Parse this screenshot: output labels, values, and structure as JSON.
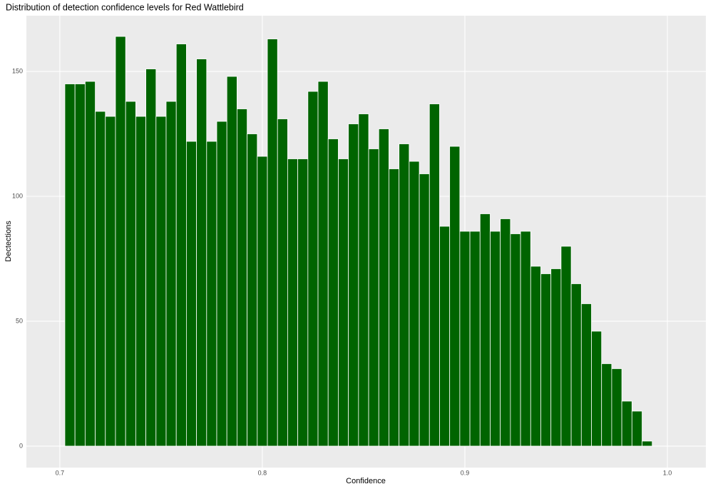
{
  "chart_data": {
    "type": "histogram",
    "title": "Distribution of detection confidence levels for Red Wattlebird",
    "x_label": "Confidence",
    "y_label": "Dectections",
    "color": "#006400",
    "bins": [
      0.7025,
      0.7075,
      0.7125,
      0.7175,
      0.7225,
      0.7275,
      0.7325,
      0.7375,
      0.7425,
      0.7475,
      0.7525,
      0.7575,
      0.7625,
      0.7675,
      0.7725,
      0.7775,
      0.7825,
      0.7875,
      0.7925,
      0.7975,
      0.8025,
      0.8075,
      0.8125,
      0.8175,
      0.8225,
      0.8275,
      0.8325,
      0.8375,
      0.8425,
      0.8475,
      0.8525,
      0.8575,
      0.8625,
      0.8675,
      0.8725,
      0.8775,
      0.8825,
      0.8875,
      0.8925,
      0.8975,
      0.9025,
      0.9075,
      0.9125,
      0.9175,
      0.9225,
      0.9275,
      0.9325,
      0.9375,
      0.9425,
      0.9475,
      0.9525,
      0.9575,
      0.9625,
      0.9675,
      0.9725,
      0.9775,
      0.9825,
      0.9875,
      0.9925
    ],
    "values": [
      145,
      145,
      146,
      134,
      132,
      164,
      138,
      132,
      151,
      132,
      138,
      161,
      122,
      155,
      122,
      130,
      148,
      135,
      125,
      116,
      163,
      131,
      115,
      115,
      142,
      146,
      123,
      115,
      129,
      133,
      119,
      127,
      111,
      121,
      114,
      109,
      137,
      88,
      120,
      86,
      86,
      93,
      86,
      91,
      85,
      86,
      72,
      69,
      71,
      80,
      65,
      57,
      46,
      33,
      31,
      18,
      14,
      2
    ],
    "xlim": [
      0.6835,
      1.019
    ],
    "ylim": [
      -8.6,
      172.3
    ],
    "xticks": [
      0.7,
      0.8,
      0.9,
      {
        "value": 1.0,
        "label": "1.0"
      }
    ],
    "yticks": [
      0,
      50,
      100,
      150
    ],
    "grid": true
  }
}
